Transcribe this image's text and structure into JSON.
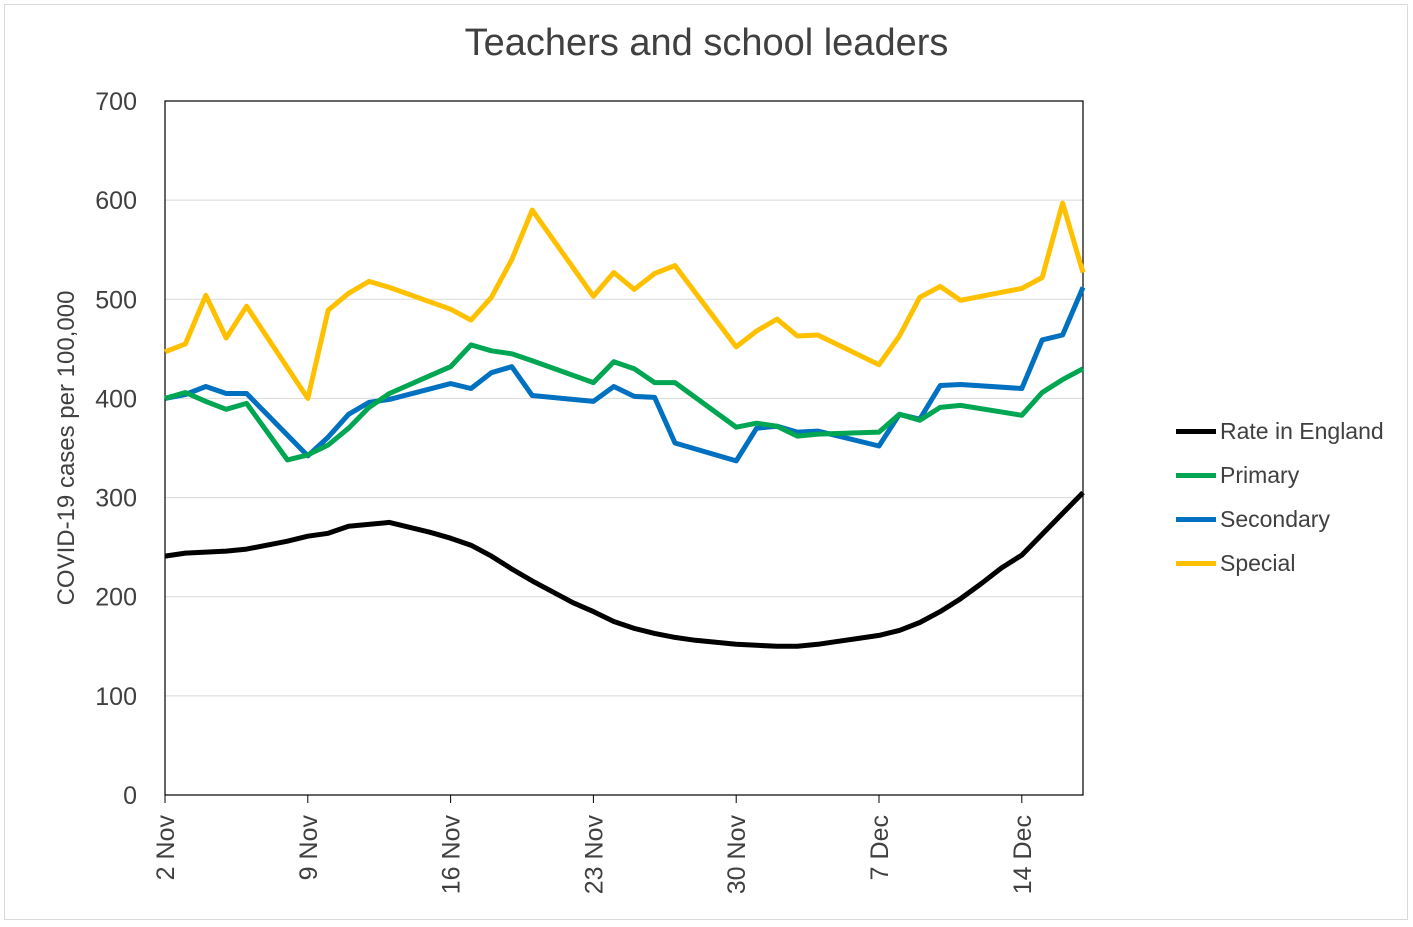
{
  "colors": {
    "rate_in_england": "#000000",
    "primary": "#00a651",
    "secondary": "#0070c0",
    "special": "#ffc000",
    "text": "#404040",
    "gridline": "#d9d9d9"
  },
  "chart_data": {
    "type": "line",
    "title": "Teachers and school leaders",
    "xlabel": "",
    "ylabel": "COVID-19 cases per 100,000",
    "ylim": [
      0,
      700
    ],
    "yticks": [
      0,
      100,
      200,
      300,
      400,
      500,
      600,
      700
    ],
    "grid": true,
    "legend_position": "right",
    "x_tick_labels": [
      "2 Nov",
      "9 Nov",
      "16 Nov",
      "23 Nov",
      "30 Nov",
      "7 Dec",
      "14 Dec"
    ],
    "x_tick_days": [
      2,
      9,
      16,
      23,
      30,
      37,
      44
    ],
    "xlim": [
      2,
      47
    ],
    "x_unit_note": "x values are day of November (days after 30 Nov continue into December)",
    "series": [
      {
        "name": "Rate in England",
        "color_key": "rate_in_england",
        "x": [
          2,
          3,
          5,
          6,
          8,
          9,
          10,
          11,
          13,
          15,
          16,
          17,
          18,
          19,
          20,
          21,
          22,
          23,
          24,
          25,
          26,
          27,
          28,
          29,
          30,
          31,
          32,
          33,
          34,
          35,
          36,
          37,
          38,
          39,
          40,
          41,
          42,
          43,
          44,
          45,
          46,
          47
        ],
        "values": [
          241,
          244,
          246,
          248,
          256,
          261,
          264,
          271,
          275,
          265,
          259,
          252,
          241,
          228,
          216,
          205,
          194,
          185,
          175,
          168,
          163,
          159,
          156,
          154,
          152,
          151,
          150,
          150,
          152,
          155,
          158,
          161,
          166,
          174,
          185,
          198,
          213,
          229,
          242,
          263,
          284,
          305
        ]
      },
      {
        "name": "Primary",
        "color_key": "primary",
        "x": [
          2,
          3,
          4,
          5,
          6,
          8,
          9,
          10,
          11,
          12,
          13,
          15,
          16,
          17,
          18,
          19,
          20,
          23,
          24,
          25,
          26,
          27,
          30,
          31,
          32,
          33,
          34,
          37,
          38,
          39,
          40,
          41,
          44,
          45,
          46,
          47
        ],
        "values": [
          400,
          406,
          397,
          389,
          395,
          338,
          343,
          353,
          370,
          391,
          405,
          423,
          432,
          454,
          448,
          445,
          438,
          416,
          437,
          430,
          416,
          416,
          371,
          375,
          372,
          362,
          364,
          366,
          384,
          378,
          391,
          393,
          383,
          406,
          419,
          430
        ]
      },
      {
        "name": "Secondary",
        "color_key": "secondary",
        "x": [
          2,
          3,
          4,
          5,
          6,
          9,
          10,
          11,
          12,
          13,
          16,
          17,
          18,
          19,
          20,
          23,
          24,
          25,
          26,
          27,
          30,
          31,
          32,
          33,
          34,
          37,
          38,
          39,
          40,
          41,
          44,
          45,
          46,
          47
        ],
        "values": [
          400,
          404,
          412,
          405,
          405,
          342,
          361,
          384,
          396,
          399,
          415,
          410,
          426,
          432,
          403,
          397,
          412,
          402,
          401,
          355,
          337,
          370,
          372,
          366,
          367,
          352,
          384,
          379,
          413,
          414,
          410,
          459,
          464,
          512
        ]
      },
      {
        "name": "Special",
        "color_key": "special",
        "x": [
          2,
          3,
          4,
          5,
          6,
          9,
          10,
          11,
          12,
          13,
          16,
          17,
          18,
          19,
          20,
          23,
          24,
          25,
          26,
          27,
          30,
          31,
          32,
          33,
          34,
          37,
          38,
          39,
          40,
          41,
          44,
          45,
          46,
          47
        ],
        "values": [
          447,
          455,
          504,
          461,
          493,
          400,
          489,
          506,
          518,
          512,
          490,
          479,
          502,
          540,
          590,
          503,
          527,
          510,
          526,
          534,
          452,
          468,
          480,
          463,
          464,
          434,
          463,
          502,
          513,
          499,
          511,
          522,
          597,
          527
        ]
      }
    ]
  }
}
